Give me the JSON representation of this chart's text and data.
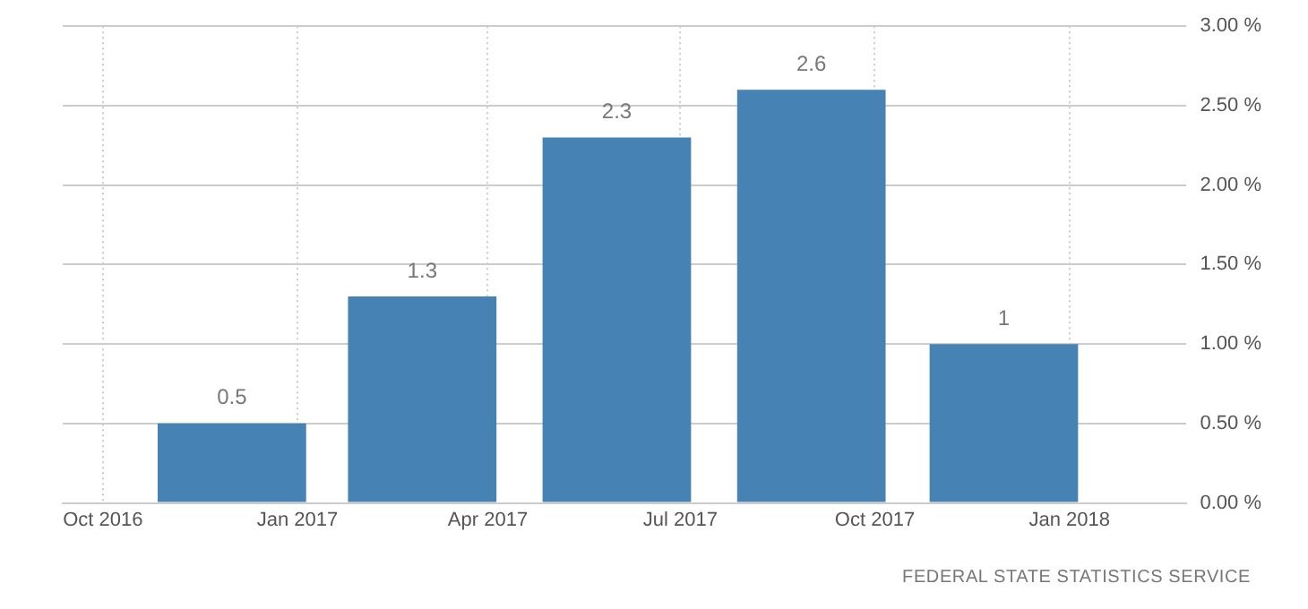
{
  "chart_data": {
    "type": "bar",
    "x": [
      "2016-12",
      "2017-03",
      "2017-06",
      "2017-09",
      "2017-12"
    ],
    "values": [
      0.5,
      1.3,
      2.3,
      2.6,
      1
    ],
    "color": "#4682b4",
    "data_labels": true,
    "xlim": [
      "2016-09-12",
      "2018-02-25"
    ],
    "xticks": [
      {
        "value": "2016-10",
        "label": "Oct 2016"
      },
      {
        "value": "2017-01",
        "label": "Jan 2017"
      },
      {
        "value": "2017-04",
        "label": "Apr 2017"
      },
      {
        "value": "2017-07",
        "label": "Jul 2017"
      },
      {
        "value": "2017-10",
        "label": "Oct 2017"
      },
      {
        "value": "2018-01",
        "label": "Jan 2018"
      }
    ],
    "ylim": [
      0,
      3
    ],
    "yticks": [
      {
        "value": 0,
        "label": "0.00 %"
      },
      {
        "value": 0.5,
        "label": "0.50 %"
      },
      {
        "value": 1,
        "label": "1.00 %"
      },
      {
        "value": 1.5,
        "label": "1.50 %"
      },
      {
        "value": 2,
        "label": "2.00 %"
      },
      {
        "value": 2.5,
        "label": "2.50 %"
      },
      {
        "value": 3,
        "label": "3.00 %"
      }
    ],
    "grid": true,
    "annotations": [
      "FEDERAL STATE STATISTICS SERVICE"
    ]
  }
}
